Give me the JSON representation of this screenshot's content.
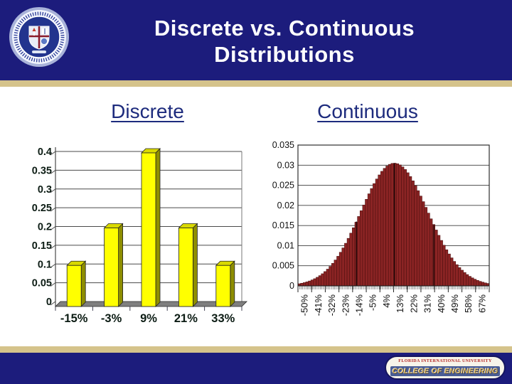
{
  "slide": {
    "banner": {
      "title_line1": "Discrete vs. Continuous",
      "title_line2": "Distributions"
    },
    "headings": {
      "left": "Discrete",
      "right": "Continuous"
    },
    "logo": {
      "name": "fiu-university-seal"
    },
    "badge": {
      "university": "FLORIDA INTERNATIONAL UNIVERSITY",
      "college": "COLLEGE OF ENGINEERING"
    },
    "colors": {
      "banner_navy": "#1c1c7c",
      "gold": "#d5c38b",
      "heading_navy": "#1d2b7d",
      "bar_yellow": "#ffff00",
      "bar_top_olive": "#d9d900",
      "bar_side_olive": "#8e8e00",
      "floor_gray": "#7f7f7f",
      "hist_red": "#8b2424",
      "hist_red_dark": "#4a0e0e",
      "badge_band_blue": "#4a5d94",
      "badge_gold": "#d4af54",
      "badge_red": "#b22222"
    }
  },
  "chart_data": [
    {
      "type": "bar",
      "title": "",
      "categories": [
        "-15%",
        "-3%",
        "9%",
        "21%",
        "33%"
      ],
      "values": [
        0.1,
        0.2,
        0.4,
        0.2,
        0.1
      ],
      "xlabel": "",
      "ylabel": "",
      "ylim": [
        0,
        0.4
      ],
      "yticks": [
        0,
        0.05,
        0.1,
        0.15,
        0.2,
        0.25,
        0.3,
        0.35,
        0.4
      ],
      "grid": true,
      "legend": "none",
      "style": "3d-yellow-bars"
    },
    {
      "type": "bar",
      "subtype": "normal-distribution-histogram",
      "title": "",
      "categories": [
        "-50%",
        "-41%",
        "-32%",
        "-23%",
        "-14%",
        "-5%",
        "4%",
        "13%",
        "22%",
        "31%",
        "40%",
        "49%",
        "58%",
        "67%"
      ],
      "xlabel": "",
      "ylabel": "",
      "ylim": [
        0,
        0.035
      ],
      "yticks": [
        0,
        0.005,
        0.01,
        0.015,
        0.02,
        0.025,
        0.03,
        0.035
      ],
      "distribution": {
        "mean_pct": 9,
        "sigma_pct": 22,
        "peak_value": 0.0305,
        "range_pct": [
          -54.5,
          71.5
        ],
        "n_bars": 74
      },
      "guide_lines_pct": [
        -16,
        9,
        35
      ],
      "grid": true,
      "legend": "none",
      "style": "thin-dark-red-bars"
    }
  ]
}
